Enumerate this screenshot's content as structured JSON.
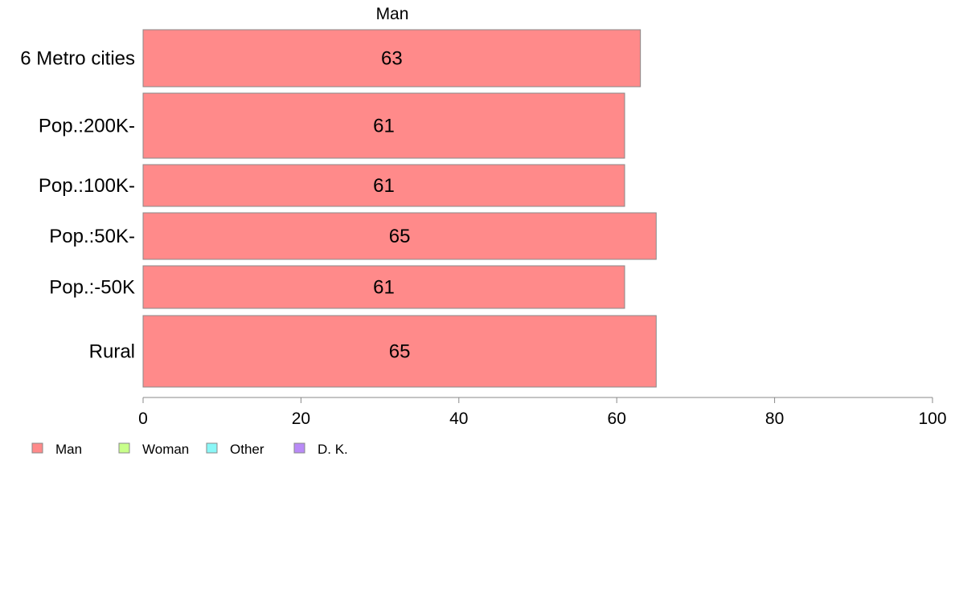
{
  "chart_data": {
    "type": "bar",
    "orientation": "horizontal",
    "title": "",
    "xlabel": "",
    "ylabel": "",
    "xlim": [
      0,
      100
    ],
    "ticks": [
      "0",
      "20",
      "40",
      "60",
      "80",
      "100"
    ],
    "grid": false,
    "categories": [
      "6 Metro cities",
      "Pop.:200K-",
      "Pop.:100K-",
      "Pop.:50K-",
      "Pop.:-50K",
      "Rural"
    ],
    "series": [
      {
        "name": "Man",
        "color": "#ff8a8a",
        "values": [
          63,
          61,
          61,
          65,
          61,
          65
        ],
        "labels": [
          "63",
          "61",
          "61",
          "65",
          "61",
          "65"
        ]
      }
    ],
    "legend": {
      "placement": "bottom-left",
      "entries": [
        {
          "label": "Man",
          "color": "#ff8a8a"
        },
        {
          "label": "Woman",
          "color": "#c8ff8a"
        },
        {
          "label": "Other",
          "color": "#8af7f7"
        },
        {
          "label": "D. K.",
          "color": "#b98af7"
        }
      ]
    }
  }
}
